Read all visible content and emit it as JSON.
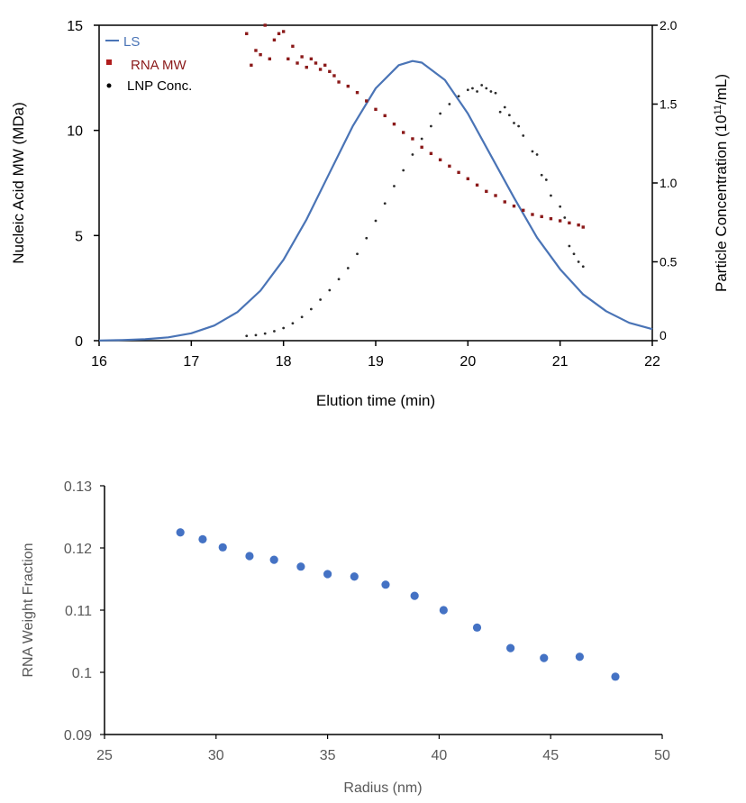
{
  "chart_data": [
    {
      "type": "scatter",
      "xlabel": "Elution time (min)",
      "ylabel": "Nucleic Acid MW (MDa)",
      "y2label_prefix": "Particle Concentration (10",
      "y2label_sup": "11",
      "y2label_suffix": "/mL)",
      "xlim": [
        16,
        22
      ],
      "ylim": [
        0,
        15
      ],
      "y2lim": [
        0,
        2.0
      ],
      "xticks": [
        "16",
        "17",
        "18",
        "19",
        "20",
        "21",
        "22"
      ],
      "yticks": [
        "0",
        "5",
        "10",
        "15"
      ],
      "y2ticks": [
        "0",
        "0.5",
        "1.0",
        "1.5",
        "2.0"
      ],
      "grid": false,
      "legend_placement": "top-left",
      "colors": {
        "LS": "#4a74b6",
        "RNA MW": "#8b1a1a",
        "LNP Conc.": "#2b2b2b"
      },
      "series": [
        {
          "name": "LS",
          "type": "line",
          "axis": "left",
          "x": [
            16,
            16.25,
            16.5,
            16.75,
            17,
            17.25,
            17.5,
            17.75,
            18,
            18.25,
            18.5,
            18.75,
            19,
            19.25,
            19.4,
            19.5,
            19.75,
            20,
            20.25,
            20.5,
            20.75,
            21,
            21.25,
            21.5,
            21.75,
            22
          ],
          "y": [
            0.01,
            0.03,
            0.07,
            0.16,
            0.35,
            0.72,
            1.36,
            2.38,
            3.85,
            5.77,
            7.98,
            10.19,
            12.0,
            13.1,
            13.3,
            13.22,
            12.4,
            10.8,
            8.8,
            6.8,
            4.9,
            3.4,
            2.2,
            1.4,
            0.85,
            0.55
          ]
        },
        {
          "name": "RNA MW",
          "type": "scatter",
          "axis": "left",
          "x": [
            17.6,
            17.65,
            17.7,
            17.75,
            17.8,
            17.85,
            17.9,
            17.95,
            18.0,
            18.05,
            18.1,
            18.15,
            18.2,
            18.25,
            18.3,
            18.35,
            18.4,
            18.45,
            18.5,
            18.55,
            18.6,
            18.7,
            18.8,
            18.9,
            19.0,
            19.1,
            19.2,
            19.3,
            19.4,
            19.5,
            19.6,
            19.7,
            19.8,
            19.9,
            20.0,
            20.1,
            20.2,
            20.3,
            20.4,
            20.5,
            20.6,
            20.7,
            20.8,
            20.9,
            21.0,
            21.1,
            21.2,
            21.25
          ],
          "y": [
            14.6,
            13.1,
            13.8,
            13.6,
            15.0,
            13.4,
            14.3,
            14.6,
            14.7,
            13.4,
            14.0,
            13.2,
            13.5,
            13.0,
            13.4,
            13.2,
            12.9,
            13.1,
            12.8,
            12.6,
            12.3,
            12.1,
            11.8,
            11.4,
            11.0,
            10.7,
            10.3,
            9.9,
            9.6,
            9.2,
            8.9,
            8.6,
            8.3,
            8.0,
            7.7,
            7.4,
            7.1,
            6.9,
            6.6,
            6.4,
            6.2,
            6.0,
            5.9,
            5.8,
            5.7,
            5.6,
            5.5,
            5.4
          ]
        },
        {
          "name": "LNP Conc.",
          "type": "scatter",
          "axis": "right",
          "x": [
            17.6,
            17.7,
            17.8,
            17.9,
            18.0,
            18.1,
            18.2,
            18.3,
            18.4,
            18.5,
            18.6,
            18.7,
            18.8,
            18.9,
            19.0,
            19.1,
            19.2,
            19.3,
            19.4,
            19.5,
            19.6,
            19.7,
            19.8,
            19.9,
            20.0,
            20.05,
            20.1,
            20.15,
            20.2,
            20.25,
            20.3,
            20.35,
            20.4,
            20.45,
            20.5,
            20.55,
            20.6,
            20.7,
            20.75,
            20.8,
            20.85,
            20.9,
            21.0,
            21.05,
            21.1,
            21.15,
            21.2,
            21.25
          ],
          "y": [
            0.03,
            0.035,
            0.045,
            0.06,
            0.08,
            0.11,
            0.15,
            0.2,
            0.26,
            0.32,
            0.39,
            0.46,
            0.55,
            0.65,
            0.76,
            0.87,
            0.98,
            1.08,
            1.18,
            1.28,
            1.36,
            1.44,
            1.5,
            1.55,
            1.59,
            1.6,
            1.58,
            1.62,
            1.6,
            1.58,
            1.57,
            1.45,
            1.48,
            1.43,
            1.38,
            1.36,
            1.3,
            1.2,
            1.18,
            1.05,
            1.02,
            0.92,
            0.85,
            0.78,
            0.6,
            0.55,
            0.5,
            0.47
          ]
        }
      ]
    },
    {
      "type": "scatter",
      "xlabel": "Radius (nm)",
      "ylabel": "RNA Weight Fraction",
      "xlim": [
        25,
        50
      ],
      "ylim": [
        0.09,
        0.13
      ],
      "xticks": [
        "25",
        "30",
        "35",
        "40",
        "45",
        "50"
      ],
      "yticks": [
        "0.09",
        "0.1",
        "0.11",
        "0.12",
        "0.13"
      ],
      "grid": false,
      "colors": {
        "points": "#4472c4"
      },
      "x": [
        28.4,
        29.4,
        30.3,
        31.5,
        32.6,
        33.8,
        35.0,
        36.2,
        37.6,
        38.9,
        40.2,
        41.7,
        43.2,
        44.7,
        46.3,
        47.9
      ],
      "y": [
        0.1225,
        0.1214,
        0.1201,
        0.1187,
        0.1181,
        0.117,
        0.1158,
        0.1154,
        0.1141,
        0.1123,
        0.11,
        0.1072,
        0.1039,
        0.1023,
        0.1025,
        0.0993
      ]
    }
  ]
}
